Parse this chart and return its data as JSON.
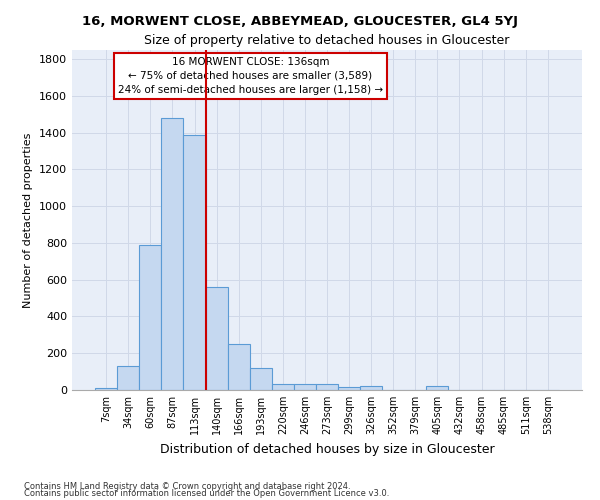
{
  "title": "16, MORWENT CLOSE, ABBEYMEAD, GLOUCESTER, GL4 5YJ",
  "subtitle": "Size of property relative to detached houses in Gloucester",
  "xlabel": "Distribution of detached houses by size in Gloucester",
  "ylabel": "Number of detached properties",
  "footer_line1": "Contains HM Land Registry data © Crown copyright and database right 2024.",
  "footer_line2": "Contains public sector information licensed under the Open Government Licence v3.0.",
  "bar_labels": [
    "7sqm",
    "34sqm",
    "60sqm",
    "87sqm",
    "113sqm",
    "140sqm",
    "166sqm",
    "193sqm",
    "220sqm",
    "246sqm",
    "273sqm",
    "299sqm",
    "326sqm",
    "352sqm",
    "379sqm",
    "405sqm",
    "432sqm",
    "458sqm",
    "485sqm",
    "511sqm",
    "538sqm"
  ],
  "bar_values": [
    10,
    130,
    790,
    1480,
    1390,
    560,
    250,
    120,
    35,
    30,
    30,
    15,
    20,
    0,
    0,
    20,
    0,
    0,
    0,
    0,
    0
  ],
  "bar_color": "#c5d8f0",
  "bar_edge_color": "#5b9bd5",
  "grid_color": "#d0d8e8",
  "background_color": "#e8eef8",
  "vline_x": 4.5,
  "vline_color": "#cc0000",
  "annotation_box_text": "16 MORWENT CLOSE: 136sqm\n← 75% of detached houses are smaller (3,589)\n24% of semi-detached houses are larger (1,158) →",
  "ylim": [
    0,
    1850
  ],
  "yticks": [
    0,
    200,
    400,
    600,
    800,
    1000,
    1200,
    1400,
    1600,
    1800
  ]
}
